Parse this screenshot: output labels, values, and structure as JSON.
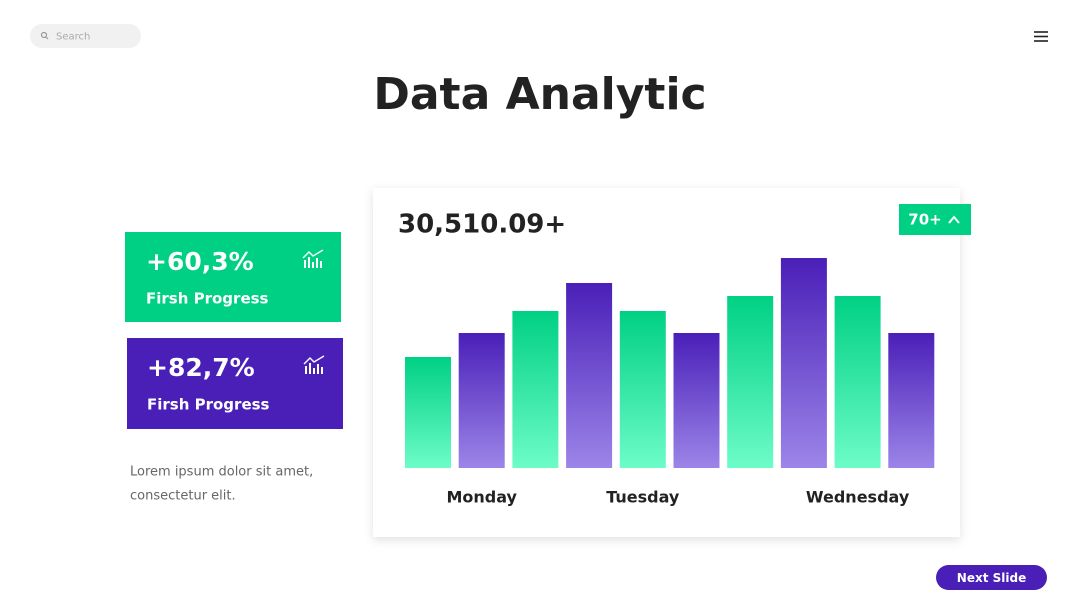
{
  "search_placeholder": "Search",
  "title": "Data Analytic",
  "cards": [
    {
      "value": "+60,3%",
      "label": "Firsh Progress"
    },
    {
      "value": "+82,7%",
      "label": "Firsh Progress"
    }
  ],
  "description": [
    "Lorem ipsum dolor sit amet,",
    "consectetur elit."
  ],
  "button": "Next Slide",
  "chart_data": {
    "type": "bar",
    "total": "30,510.09+",
    "badge": "70+",
    "categories": [
      null,
      "Monday",
      null,
      null,
      "Tuesday",
      null,
      null,
      null,
      "Wednesday",
      null
    ],
    "values": [
      111,
      135,
      157,
      185,
      157,
      135,
      172,
      210,
      172,
      135
    ],
    "ylim": [
      0,
      210
    ],
    "colors": [
      "#00d084",
      "#4a1fb8",
      "#00d084",
      "#4a1fb8",
      "#00d084",
      "#4a1fb8",
      "#00d084",
      "#4a1fb8",
      "#00d084",
      "#4a1fb8"
    ],
    "colors_light": [
      "#6dfcc8",
      "#9c85e8",
      "#6dfcc8",
      "#9c85e8",
      "#6dfcc8",
      "#9c85e8",
      "#6dfcc8",
      "#9c85e8",
      "#6dfcc8",
      "#9c85e8"
    ]
  }
}
